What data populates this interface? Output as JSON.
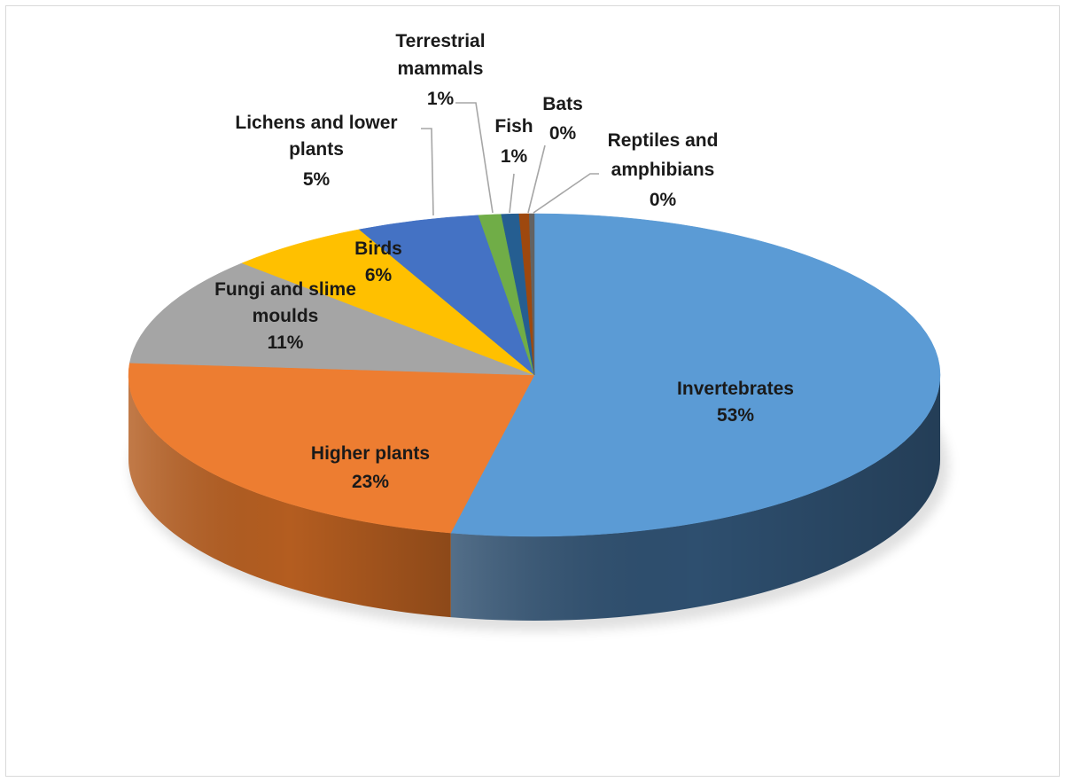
{
  "chart_data": {
    "type": "pie",
    "style": "3d",
    "slices": [
      {
        "label": "Invertebrates",
        "pct_label": "53%",
        "value": 53.3,
        "color": "#5b9bd5",
        "side_color": "#2e4f6f"
      },
      {
        "label": "Higher plants",
        "pct_label": "23%",
        "value": 22.9,
        "color": "#ed7d31",
        "side_color": "#b45d20"
      },
      {
        "label": "Fungi and slime moulds",
        "pct_label": "11%",
        "value": 11.0,
        "color": "#a5a5a5",
        "side_color": "#7b7b7b"
      },
      {
        "label": "Birds",
        "pct_label": "6%",
        "value": 5.7,
        "color": "#ffc000",
        "side_color": "#bf9000"
      },
      {
        "label": "Lichens and lower plants",
        "pct_label": "5%",
        "value": 4.9,
        "color": "#4472c4",
        "side_color": "#2f528f"
      },
      {
        "label": "Terrestrial mammals",
        "pct_label": "1%",
        "value": 0.9,
        "color": "#70ad47",
        "side_color": "#507e32"
      },
      {
        "label": "Fish",
        "pct_label": "1%",
        "value": 0.7,
        "color": "#255e91",
        "side_color": "#1a4468"
      },
      {
        "label": "Bats",
        "pct_label": "0%",
        "value": 0.4,
        "color": "#9e480e",
        "side_color": "#70330a"
      },
      {
        "label": "Reptiles and amphibians",
        "pct_label": "0%",
        "value": 0.2,
        "color": "#636363",
        "side_color": "#444444"
      }
    ],
    "legend": "none",
    "data_labels": "category name and percentage"
  }
}
